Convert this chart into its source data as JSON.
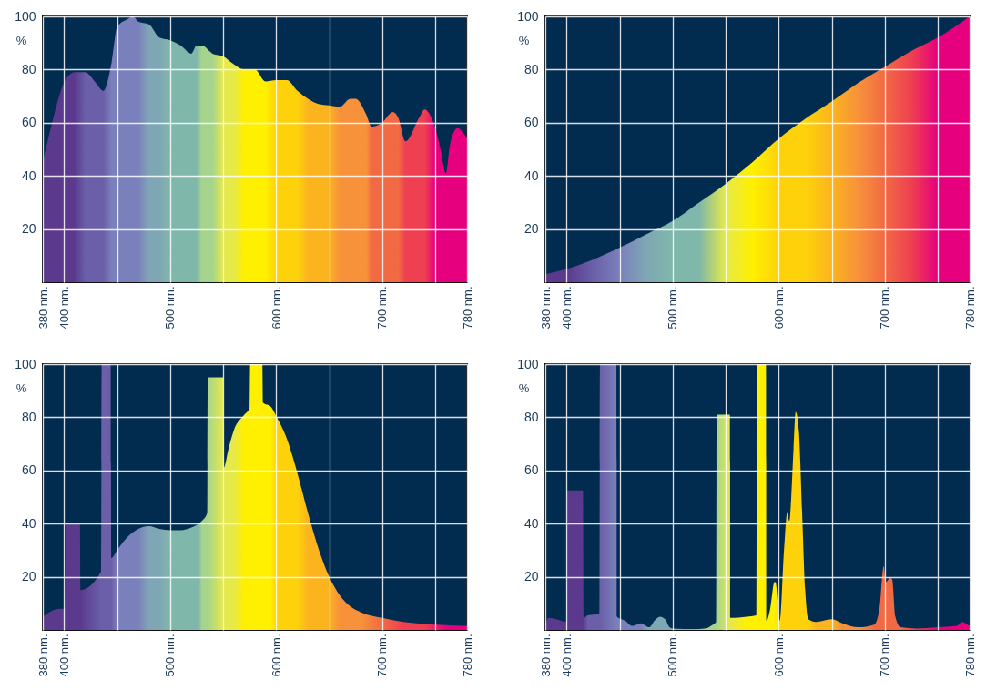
{
  "chart_data": [
    {
      "type": "area",
      "ylabel": "%",
      "xlim": [
        380,
        780
      ],
      "ylim": [
        0,
        100
      ],
      "grid": true,
      "xticks": [
        {
          "value": 380,
          "label": "380 nm."
        },
        {
          "value": 400,
          "label": "400 nm."
        },
        {
          "value": 450,
          "label": null
        },
        {
          "value": 500,
          "label": "500 nm."
        },
        {
          "value": 550,
          "label": null
        },
        {
          "value": 600,
          "label": "600 nm."
        },
        {
          "value": 650,
          "label": null
        },
        {
          "value": 700,
          "label": "700 nm."
        },
        {
          "value": 750,
          "label": null
        },
        {
          "value": 780,
          "label": "780 nm."
        }
      ],
      "yticks": [
        20,
        40,
        60,
        80,
        100
      ],
      "x": [
        380,
        390,
        400,
        410,
        420,
        430,
        437,
        445,
        450,
        460,
        465,
        470,
        480,
        490,
        500,
        510,
        520,
        525,
        530,
        540,
        550,
        560,
        570,
        580,
        590,
        600,
        610,
        620,
        630,
        640,
        650,
        660,
        670,
        675,
        685,
        690,
        700,
        710,
        715,
        722,
        735,
        740,
        750,
        755,
        760,
        764,
        771,
        780
      ],
      "values": [
        45,
        62,
        75,
        79,
        79,
        75,
        72,
        83,
        96,
        99,
        100,
        98,
        97,
        92,
        91,
        89,
        86,
        89,
        89,
        86,
        85,
        82,
        80,
        80,
        75.5,
        76,
        76,
        72,
        69,
        67,
        66.5,
        66,
        69,
        69,
        63,
        58.5,
        60,
        64,
        62,
        53,
        62,
        65,
        58,
        50,
        41,
        52,
        58,
        54
      ],
      "colors": [
        "#5b3a8e",
        "#5b3a8e",
        "#5b3a8e",
        "#5b3a8e",
        "#6a5fa8",
        "#6a5fa8",
        "#6a5fa8",
        "#7a80bb",
        "#7a80bb",
        "#7a80bb",
        "#7a80bb",
        "#7a80bb",
        "#7fa6b4",
        "#7fa6b4",
        "#7fb8aa",
        "#7fb8aa",
        "#7fb8aa",
        "#7fb8aa",
        "#a6d48c",
        "#a6d48c",
        "#e6e94a",
        "#e6e94a",
        "#fff000",
        "#fff000",
        "#fff000",
        "#fdd20a",
        "#fdd20a",
        "#fdd20a",
        "#fbb41e",
        "#fbb41e",
        "#fbb41e",
        "#f7923a",
        "#f7923a",
        "#f7923a",
        "#f7923a",
        "#f26a44",
        "#f26a44",
        "#f26a44",
        "#f26a44",
        "#ee4050",
        "#ee4050",
        "#ee4050",
        "#e6007e",
        "#e6007e",
        "#e6007e",
        "#e6007e",
        "#e6007e",
        "#e6007e"
      ]
    },
    {
      "type": "area",
      "ylabel": "%",
      "xlim": [
        380,
        780
      ],
      "ylim": [
        0,
        100
      ],
      "grid": true,
      "xticks": [
        {
          "value": 380,
          "label": "380 nm."
        },
        {
          "value": 400,
          "label": "400 nm."
        },
        {
          "value": 450,
          "label": null
        },
        {
          "value": 500,
          "label": "500 nm."
        },
        {
          "value": 550,
          "label": null
        },
        {
          "value": 600,
          "label": "600 nm."
        },
        {
          "value": 650,
          "label": null
        },
        {
          "value": 700,
          "label": "700 nm."
        },
        {
          "value": 750,
          "label": null
        },
        {
          "value": 780,
          "label": "780 nm."
        }
      ],
      "yticks": [
        20,
        40,
        60,
        80,
        100
      ],
      "x": [
        380,
        400,
        425,
        450,
        475,
        500,
        525,
        550,
        575,
        600,
        625,
        650,
        675,
        700,
        725,
        750,
        780
      ],
      "values": [
        3,
        5,
        8.5,
        13,
        18,
        23,
        30,
        37,
        45,
        54,
        61.5,
        68,
        75,
        81,
        87,
        92,
        100
      ],
      "colors": [
        "#5b3a8e",
        "#5b3a8e",
        "#6a5fa8",
        "#7a80bb",
        "#7fa6b4",
        "#7fb8aa",
        "#7fb8aa",
        "#e6e94a",
        "#fff000",
        "#fdd20a",
        "#fdd20a",
        "#fbb41e",
        "#f7923a",
        "#f26a44",
        "#ee4050",
        "#e6007e",
        "#e6007e"
      ]
    },
    {
      "type": "area",
      "ylabel": "%",
      "xlim": [
        380,
        780
      ],
      "ylim": [
        0,
        100
      ],
      "grid": true,
      "xticks": [
        {
          "value": 380,
          "label": "380 nm."
        },
        {
          "value": 400,
          "label": "400 nm."
        },
        {
          "value": 450,
          "label": null
        },
        {
          "value": 500,
          "label": "500 nm."
        },
        {
          "value": 550,
          "label": null
        },
        {
          "value": 600,
          "label": "600 nm."
        },
        {
          "value": 650,
          "label": null
        },
        {
          "value": 700,
          "label": "700 nm."
        },
        {
          "value": 750,
          "label": null
        },
        {
          "value": 780,
          "label": "780 nm."
        }
      ],
      "yticks": [
        20,
        40,
        60,
        80,
        100
      ],
      "x": [
        380,
        396,
        401,
        402,
        415,
        415.5,
        435,
        435.5,
        444,
        444.5,
        450,
        460,
        470,
        480,
        490,
        500,
        510,
        520,
        527,
        530,
        535,
        535.5,
        550,
        550.5,
        555,
        560,
        570,
        575,
        575.5,
        587,
        587.5,
        595,
        600,
        610,
        620,
        630,
        640,
        650,
        660,
        670,
        680,
        700,
        720,
        740,
        760,
        780
      ],
      "values": [
        5,
        8,
        8,
        40,
        40,
        15,
        22,
        100,
        100,
        27,
        30,
        35,
        38,
        39,
        38,
        37.5,
        37.5,
        38.5,
        40,
        41,
        44,
        95,
        95,
        61,
        68,
        75,
        81,
        83.5,
        100,
        100,
        85.5,
        84,
        80.5,
        72,
        59,
        44,
        30.5,
        20,
        13,
        8.8,
        6.6,
        4.5,
        3,
        2.2,
        1.8,
        1.5
      ],
      "colors": [
        "#5b3a8e",
        "#5b3a8e",
        "#5b3a8e",
        "#5b3a8e",
        "#5b3a8e",
        "#5b3a8e",
        "#6a5fa8",
        "#6a5fa8",
        "#6a5fa8",
        "#6a5fa8",
        "#7a80bb",
        "#7a80bb",
        "#7a80bb",
        "#7fa6b4",
        "#7fa6b4",
        "#7fb8aa",
        "#7fb8aa",
        "#7fb8aa",
        "#7fb8aa",
        "#a6d48c",
        "#a6d48c",
        "#a6d48c",
        "#e6e94a",
        "#e6e94a",
        "#e6e94a",
        "#e6e94a",
        "#fff000",
        "#fff000",
        "#fff000",
        "#fff000",
        "#fff000",
        "#fff000",
        "#fdd20a",
        "#fdd20a",
        "#fdd20a",
        "#fbb41e",
        "#fbb41e",
        "#fbb41e",
        "#f7923a",
        "#f7923a",
        "#f7923a",
        "#f26a44",
        "#ee4050",
        "#ee4050",
        "#e6007e",
        "#e6007e"
      ]
    },
    {
      "type": "area",
      "ylabel": "%",
      "xlim": [
        380,
        780
      ],
      "ylim": [
        0,
        100
      ],
      "grid": true,
      "xticks": [
        {
          "value": 380,
          "label": "380 nm."
        },
        {
          "value": 400,
          "label": "400 nm."
        },
        {
          "value": 450,
          "label": null
        },
        {
          "value": 500,
          "label": "500 nm."
        },
        {
          "value": 550,
          "label": null
        },
        {
          "value": 600,
          "label": "600 nm."
        },
        {
          "value": 650,
          "label": null
        },
        {
          "value": 700,
          "label": "700 nm."
        },
        {
          "value": 750,
          "label": null
        },
        {
          "value": 780,
          "label": "780 nm."
        }
      ],
      "yticks": [
        20,
        40,
        60,
        80,
        100
      ],
      "x": [
        380,
        383,
        390,
        400,
        400.5,
        415.5,
        416,
        420,
        431,
        431.5,
        447,
        447.5,
        455,
        462,
        470,
        478,
        483,
        488,
        493,
        497,
        500,
        520,
        530,
        538,
        541,
        541.5,
        554,
        554.5,
        570,
        579,
        579.5,
        588,
        588.5,
        592,
        596,
        597,
        601,
        605,
        608,
        610,
        614,
        616,
        619,
        622,
        625,
        628,
        635,
        650,
        660,
        675,
        690,
        695,
        699,
        701,
        705,
        707,
        710,
        715,
        730,
        750,
        768,
        773,
        778,
        780
      ],
      "values": [
        2,
        4.5,
        4,
        3,
        52.5,
        52.5,
        4.5,
        5.5,
        6,
        100,
        100,
        5,
        3.5,
        1.5,
        2.5,
        1,
        3.5,
        5,
        4,
        1,
        0.5,
        0.3,
        0.5,
        2,
        3,
        81,
        81,
        4.5,
        5,
        5.5,
        100,
        100,
        3.5,
        8,
        18,
        18,
        3.5,
        30,
        44,
        41,
        68,
        82,
        75,
        45,
        15,
        4,
        3,
        4,
        2.5,
        1,
        2,
        8,
        24,
        18,
        19.5,
        19,
        5,
        1,
        0.5,
        1,
        1.5,
        3,
        2,
        1.5
      ],
      "colors": [
        "#5b3a8e",
        "#5b3a8e",
        "#5b3a8e",
        "#5b3a8e",
        "#5b3a8e",
        "#5b3a8e",
        "#5b3a8e",
        "#6a5fa8",
        "#6a5fa8",
        "#6a5fa8",
        "#7a80bb",
        "#7a80bb",
        "#7a80bb",
        "#7a80bb",
        "#7a80bb",
        "#7fa6b4",
        "#7fa6b4",
        "#7fa6b4",
        "#7fa6b4",
        "#7fa6b4",
        "#7fb8aa",
        "#7fb8aa",
        "#a6d48c",
        "#a6d48c",
        "#a6d48c",
        "#a6d48c",
        "#e6e94a",
        "#e6e94a",
        "#fff000",
        "#fff000",
        "#fff000",
        "#fff000",
        "#fff000",
        "#fff000",
        "#fff000",
        "#fff000",
        "#fdd20a",
        "#fdd20a",
        "#fdd20a",
        "#fdd20a",
        "#fdd20a",
        "#fdd20a",
        "#fdd20a",
        "#fdd20a",
        "#fdd20a",
        "#fdd20a",
        "#fbb41e",
        "#fbb41e",
        "#f7923a",
        "#f7923a",
        "#f26a44",
        "#f26a44",
        "#f26a44",
        "#f26a44",
        "#f26a44",
        "#f26a44",
        "#f26a44",
        "#f26a44",
        "#ee4050",
        "#e6007e",
        "#e6007e",
        "#e6007e",
        "#e6007e",
        "#e6007e"
      ]
    }
  ]
}
